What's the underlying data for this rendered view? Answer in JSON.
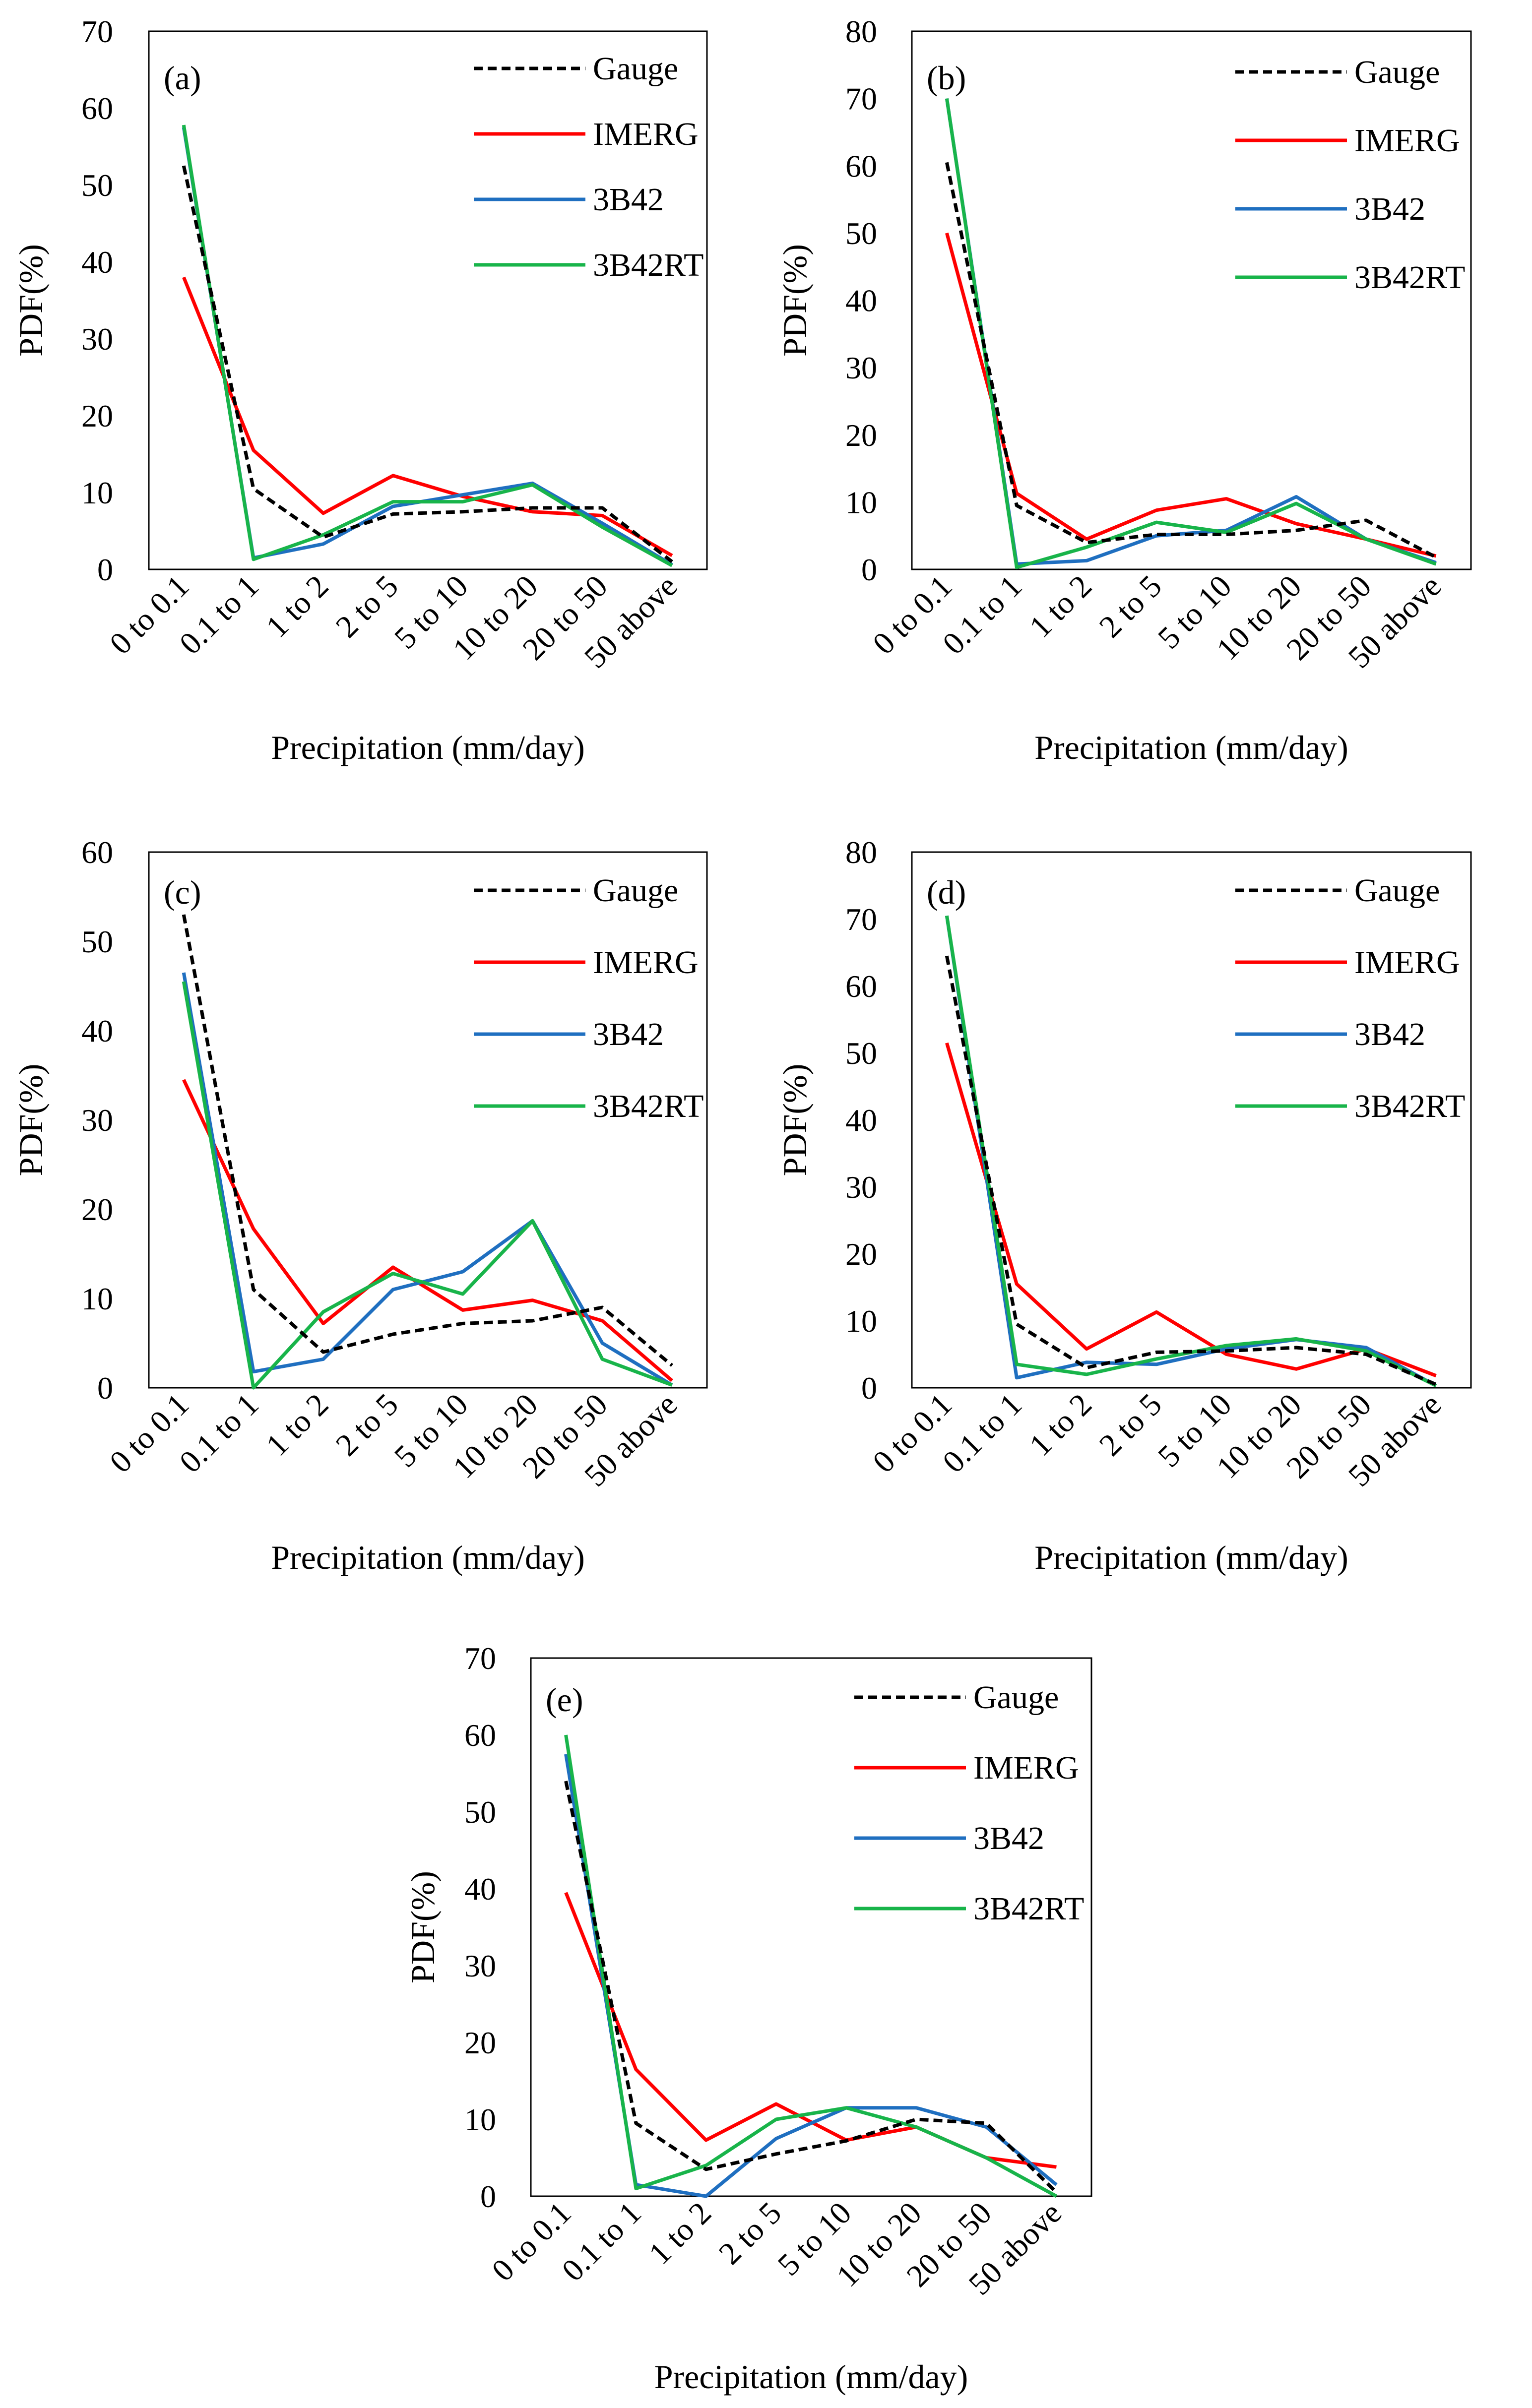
{
  "chart_data": [
    {
      "type": "line",
      "panel_label": "(a)",
      "categories": [
        "0 to 0.1",
        "0.1 to 1",
        "1 to 2",
        "2 to 5",
        "5 to 10",
        "10 to 20",
        "20 to 50",
        "50 above"
      ],
      "ylim": [
        0,
        70
      ],
      "yticks": [
        0,
        10,
        20,
        30,
        40,
        50,
        60,
        70
      ],
      "xlabel": "Precipitation (mm/day)",
      "ylabel": "PDF(%)",
      "series": [
        {
          "name": "Gauge",
          "values": [
            52.5,
            10.5,
            4.2,
            7.2,
            7.5,
            8.0,
            8.0,
            1.0
          ]
        },
        {
          "name": "IMERG",
          "values": [
            38.0,
            15.5,
            7.3,
            12.2,
            9.5,
            7.5,
            7.0,
            1.8
          ]
        },
        {
          "name": "3B42",
          "values": [
            57.5,
            1.5,
            3.3,
            8.2,
            9.7,
            11.2,
            6.0,
            0.6
          ]
        },
        {
          "name": "3B42RT",
          "values": [
            57.8,
            1.3,
            4.5,
            8.8,
            8.8,
            11.0,
            5.5,
            0.5
          ]
        }
      ]
    },
    {
      "type": "line",
      "panel_label": "(b)",
      "categories": [
        "0 to 0.1",
        "0.1 to 1",
        "1 to 2",
        "2 to 5",
        "5 to 10",
        "10 to 20",
        "20 to 50",
        "50 above"
      ],
      "ylim": [
        0,
        80
      ],
      "yticks": [
        0,
        10,
        20,
        30,
        40,
        50,
        60,
        70,
        80
      ],
      "xlabel": "Precipitation (mm/day)",
      "ylabel": "PDF(%)",
      "series": [
        {
          "name": "Gauge",
          "values": [
            60.5,
            9.5,
            4.0,
            5.2,
            5.2,
            5.8,
            7.3,
            1.8
          ]
        },
        {
          "name": "IMERG",
          "values": [
            50.0,
            11.3,
            4.5,
            8.8,
            10.5,
            6.8,
            4.5,
            2.0
          ]
        },
        {
          "name": "3B42",
          "values": [
            70.0,
            0.8,
            1.3,
            5.0,
            5.8,
            10.8,
            4.5,
            1.0
          ]
        },
        {
          "name": "3B42RT",
          "values": [
            70.0,
            0.3,
            3.3,
            7.0,
            5.5,
            9.8,
            4.5,
            0.8
          ]
        }
      ]
    },
    {
      "type": "line",
      "panel_label": "(c)",
      "categories": [
        "0 to 0.1",
        "0.1 to 1",
        "1 to 2",
        "2 to 5",
        "5 to 10",
        "10 to 20",
        "20 to 50",
        "50 above"
      ],
      "ylim": [
        0,
        60
      ],
      "yticks": [
        0,
        10,
        20,
        30,
        40,
        50,
        60
      ],
      "xlabel": "Precipitation (mm/day)",
      "ylabel": "PDF(%)",
      "series": [
        {
          "name": "Gauge",
          "values": [
            53.0,
            11.0,
            4.0,
            6.0,
            7.2,
            7.5,
            9.0,
            2.5
          ]
        },
        {
          "name": "IMERG",
          "values": [
            34.5,
            17.8,
            7.2,
            13.5,
            8.7,
            9.8,
            7.5,
            0.8
          ]
        },
        {
          "name": "3B42",
          "values": [
            46.5,
            1.8,
            3.2,
            11.0,
            13.0,
            18.7,
            5.0,
            0.3
          ]
        },
        {
          "name": "3B42RT",
          "values": [
            45.5,
            0.0,
            8.5,
            12.8,
            10.5,
            18.7,
            3.2,
            0.3
          ]
        }
      ]
    },
    {
      "type": "line",
      "panel_label": "(d)",
      "categories": [
        "0 to 0.1",
        "0.1 to 1",
        "1 to 2",
        "2 to 5",
        "5 to 10",
        "10 to 20",
        "20 to 50",
        "50 above"
      ],
      "ylim": [
        0,
        80
      ],
      "yticks": [
        0,
        10,
        20,
        30,
        40,
        50,
        60,
        70,
        80
      ],
      "xlabel": "Precipitation (mm/day)",
      "ylabel": "PDF(%)",
      "series": [
        {
          "name": "Gauge",
          "values": [
            64.5,
            9.5,
            3.0,
            5.3,
            5.5,
            6.0,
            5.0,
            0.5
          ]
        },
        {
          "name": "IMERG",
          "values": [
            51.5,
            15.5,
            5.8,
            11.3,
            5.0,
            2.8,
            5.8,
            1.8
          ]
        },
        {
          "name": "3B42",
          "values": [
            70.5,
            1.5,
            3.8,
            3.5,
            5.8,
            7.2,
            6.0,
            0.3
          ]
        },
        {
          "name": "3B42RT",
          "values": [
            70.5,
            3.5,
            2.0,
            4.3,
            6.3,
            7.3,
            5.5,
            0.3
          ]
        }
      ]
    },
    {
      "type": "line",
      "panel_label": "(e)",
      "categories": [
        "0 to 0.1",
        "0.1 to 1",
        "1 to 2",
        "2 to 5",
        "5 to 10",
        "10 to 20",
        "20 to 50",
        "50 above"
      ],
      "ylim": [
        0,
        70
      ],
      "yticks": [
        0,
        10,
        20,
        30,
        40,
        50,
        60,
        70
      ],
      "xlabel": "Precipitation (mm/day)",
      "ylabel": "PDF(%)",
      "series": [
        {
          "name": "Gauge",
          "values": [
            54.0,
            9.5,
            3.5,
            5.5,
            7.2,
            10.0,
            9.5,
            0.5
          ]
        },
        {
          "name": "IMERG",
          "values": [
            39.5,
            16.5,
            7.3,
            12.0,
            7.3,
            9.0,
            5.0,
            3.8
          ]
        },
        {
          "name": "3B42",
          "values": [
            57.5,
            1.5,
            0.0,
            7.5,
            11.5,
            11.5,
            9.0,
            1.5
          ]
        },
        {
          "name": "3B42RT",
          "values": [
            60.0,
            1.0,
            4.0,
            10.0,
            11.5,
            9.0,
            5.0,
            0.0
          ]
        }
      ]
    }
  ],
  "series_colors": {
    "Gauge": "#000000",
    "IMERG": "#ff0000",
    "3B42": "#1f6fc0",
    "3B42RT": "#18b44a"
  }
}
